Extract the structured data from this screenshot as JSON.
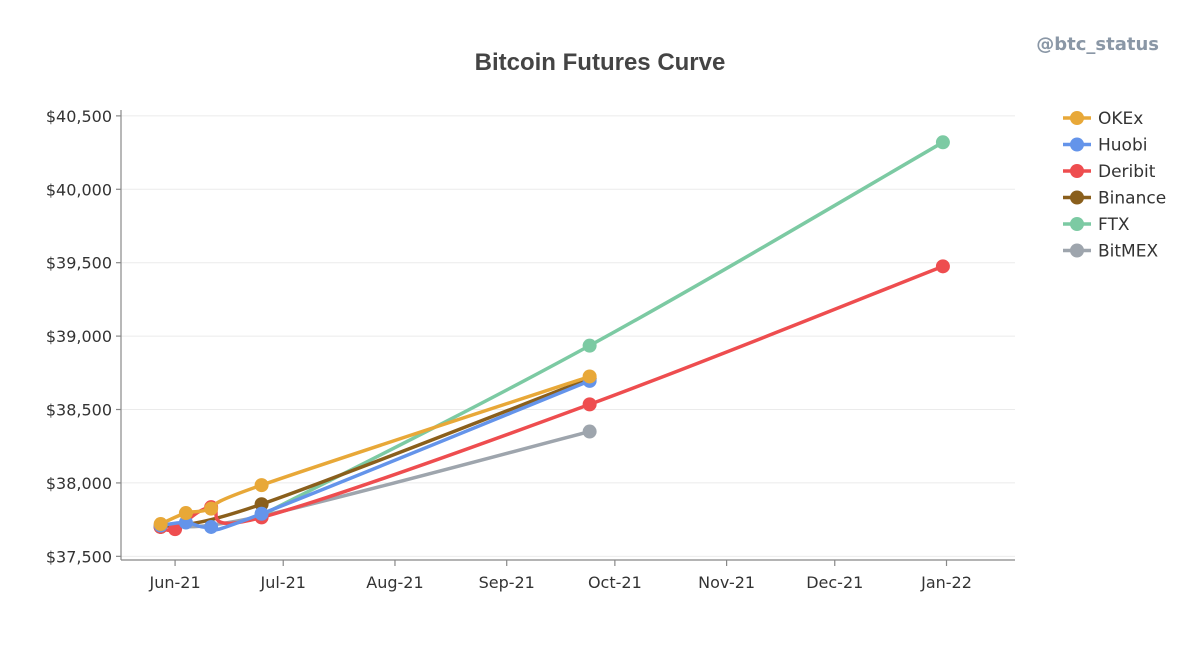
{
  "watermark": "@btc_status",
  "chart_data": {
    "type": "line",
    "title": "Bitcoin Futures Curve",
    "xlabel": "",
    "ylabel": "",
    "x_axis": {
      "type": "date",
      "range": [
        "2021-05-17",
        "2022-01-20"
      ],
      "ticks": [
        {
          "date": "2021-06-01",
          "label": "Jun-21"
        },
        {
          "date": "2021-07-01",
          "label": "Jul-21"
        },
        {
          "date": "2021-08-01",
          "label": "Aug-21"
        },
        {
          "date": "2021-09-01",
          "label": "Sep-21"
        },
        {
          "date": "2021-10-01",
          "label": "Oct-21"
        },
        {
          "date": "2021-11-01",
          "label": "Nov-21"
        },
        {
          "date": "2021-12-01",
          "label": "Dec-21"
        },
        {
          "date": "2022-01-01",
          "label": "Jan-22"
        }
      ]
    },
    "y_axis": {
      "range": [
        37475,
        40540
      ],
      "ticks": [
        {
          "value": 37500,
          "label": "$37,500"
        },
        {
          "value": 38000,
          "label": "$38,000"
        },
        {
          "value": 38500,
          "label": "$38,500"
        },
        {
          "value": 39000,
          "label": "$39,000"
        },
        {
          "value": 39500,
          "label": "$39,500"
        },
        {
          "value": 40000,
          "label": "$40,000"
        },
        {
          "value": 40500,
          "label": "$40,500"
        }
      ]
    },
    "grid": "horizontal",
    "legend_position": "right",
    "series": [
      {
        "name": "OKEx",
        "color": "#e8a838",
        "points": [
          {
            "x": "2021-05-28",
            "y": 37720
          },
          {
            "x": "2021-06-04",
            "y": 37795
          },
          {
            "x": "2021-06-11",
            "y": 37825
          },
          {
            "x": "2021-06-25",
            "y": 37985
          },
          {
            "x": "2021-09-24",
            "y": 38725
          }
        ]
      },
      {
        "name": "Huobi",
        "color": "#6494ea",
        "points": [
          {
            "x": "2021-05-28",
            "y": 37710
          },
          {
            "x": "2021-06-04",
            "y": 37730
          },
          {
            "x": "2021-06-11",
            "y": 37700
          },
          {
            "x": "2021-06-25",
            "y": 37790
          },
          {
            "x": "2021-09-24",
            "y": 38695
          }
        ]
      },
      {
        "name": "Deribit",
        "color": "#ee4d4f",
        "points": [
          {
            "x": "2021-05-28",
            "y": 37700
          },
          {
            "x": "2021-06-01",
            "y": 37685
          },
          {
            "x": "2021-06-11",
            "y": 37835
          },
          {
            "x": "2021-06-25",
            "y": 37765
          },
          {
            "x": "2021-09-24",
            "y": 38535
          },
          {
            "x": "2021-12-31",
            "y": 39475
          }
        ]
      },
      {
        "name": "Binance",
        "color": "#8a5f1c",
        "points": [
          {
            "x": "2021-05-28",
            "y": 37700
          },
          {
            "x": "2021-06-25",
            "y": 37855
          },
          {
            "x": "2021-09-24",
            "y": 38710
          }
        ]
      },
      {
        "name": "FTX",
        "color": "#7ccaa3",
        "points": [
          {
            "x": "2021-06-25",
            "y": 37780
          },
          {
            "x": "2021-09-24",
            "y": 38935
          },
          {
            "x": "2021-12-31",
            "y": 40320
          }
        ]
      },
      {
        "name": "BitMEX",
        "color": "#9ea5ad",
        "points": [
          {
            "x": "2021-05-28",
            "y": 37705
          },
          {
            "x": "2021-06-25",
            "y": 37775
          },
          {
            "x": "2021-09-24",
            "y": 38350
          }
        ]
      }
    ]
  }
}
